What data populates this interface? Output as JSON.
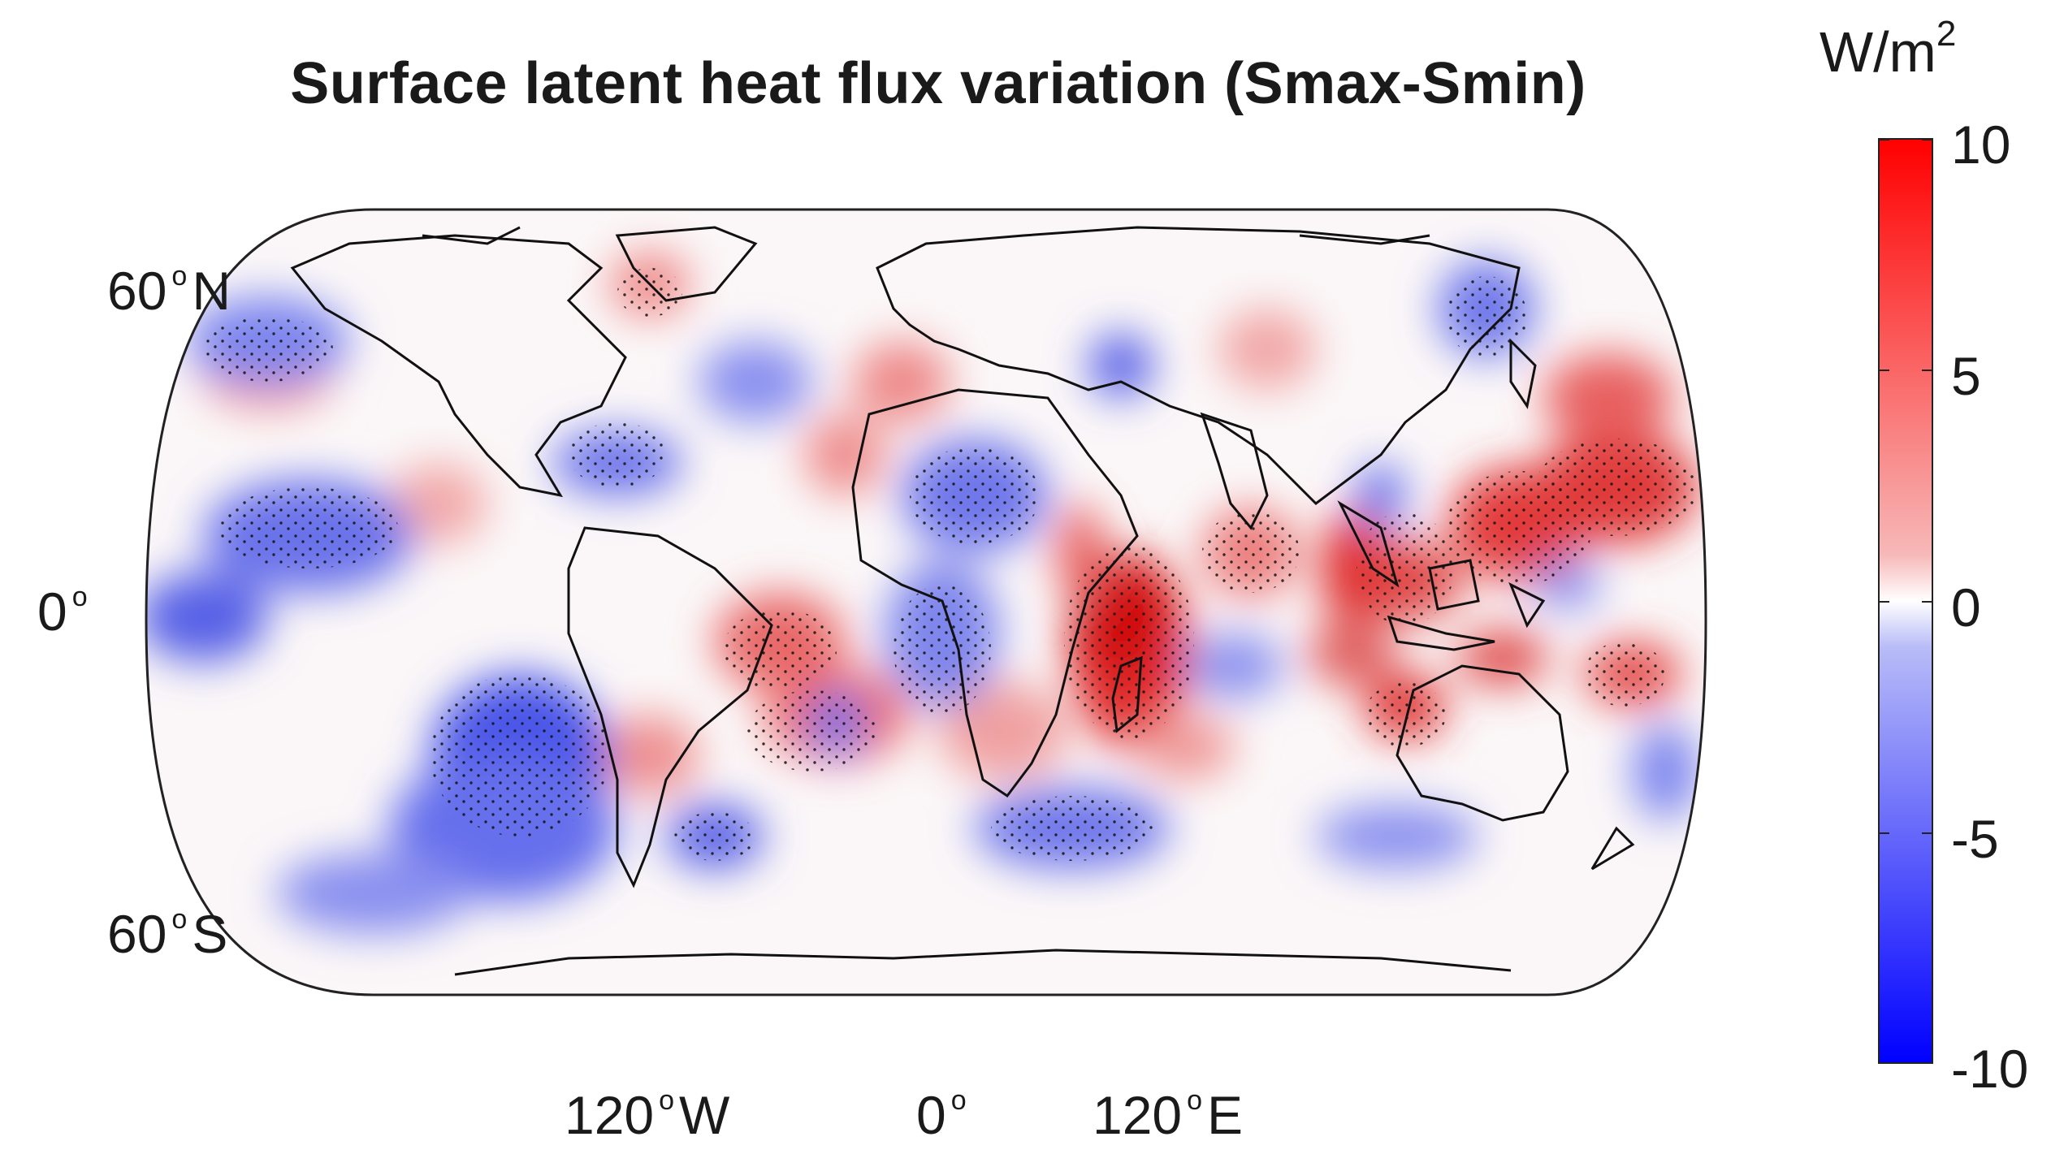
{
  "title": "Surface latent heat flux variation (Smax-Smin)",
  "colorbar": {
    "unit_base": "W/m",
    "unit_sup": "2",
    "ticks": [
      "10",
      "5",
      "0",
      "-5",
      "-10"
    ],
    "range": [
      -10,
      10
    ],
    "colors": {
      "low": "#0000ff",
      "mid": "#ffffff",
      "high": "#ff0000"
    }
  },
  "lat_labels": {
    "n60": {
      "value": "60",
      "hemi": "N"
    },
    "eq": {
      "value": "0",
      "hemi": ""
    },
    "s60": {
      "value": "60",
      "hemi": "S"
    }
  },
  "lon_labels": {
    "w120": {
      "value": "120",
      "hemi": "W"
    },
    "prime": {
      "value": "0",
      "hemi": ""
    },
    "e120": {
      "value": "120",
      "hemi": "E"
    }
  },
  "map": {
    "projection": "Eckert IV (pseudocylindrical, rounded sides)",
    "field": "surface latent heat flux difference Smax minus Smin",
    "stippling": "black dots mark statistically significant regions",
    "coastlines": "black"
  }
}
